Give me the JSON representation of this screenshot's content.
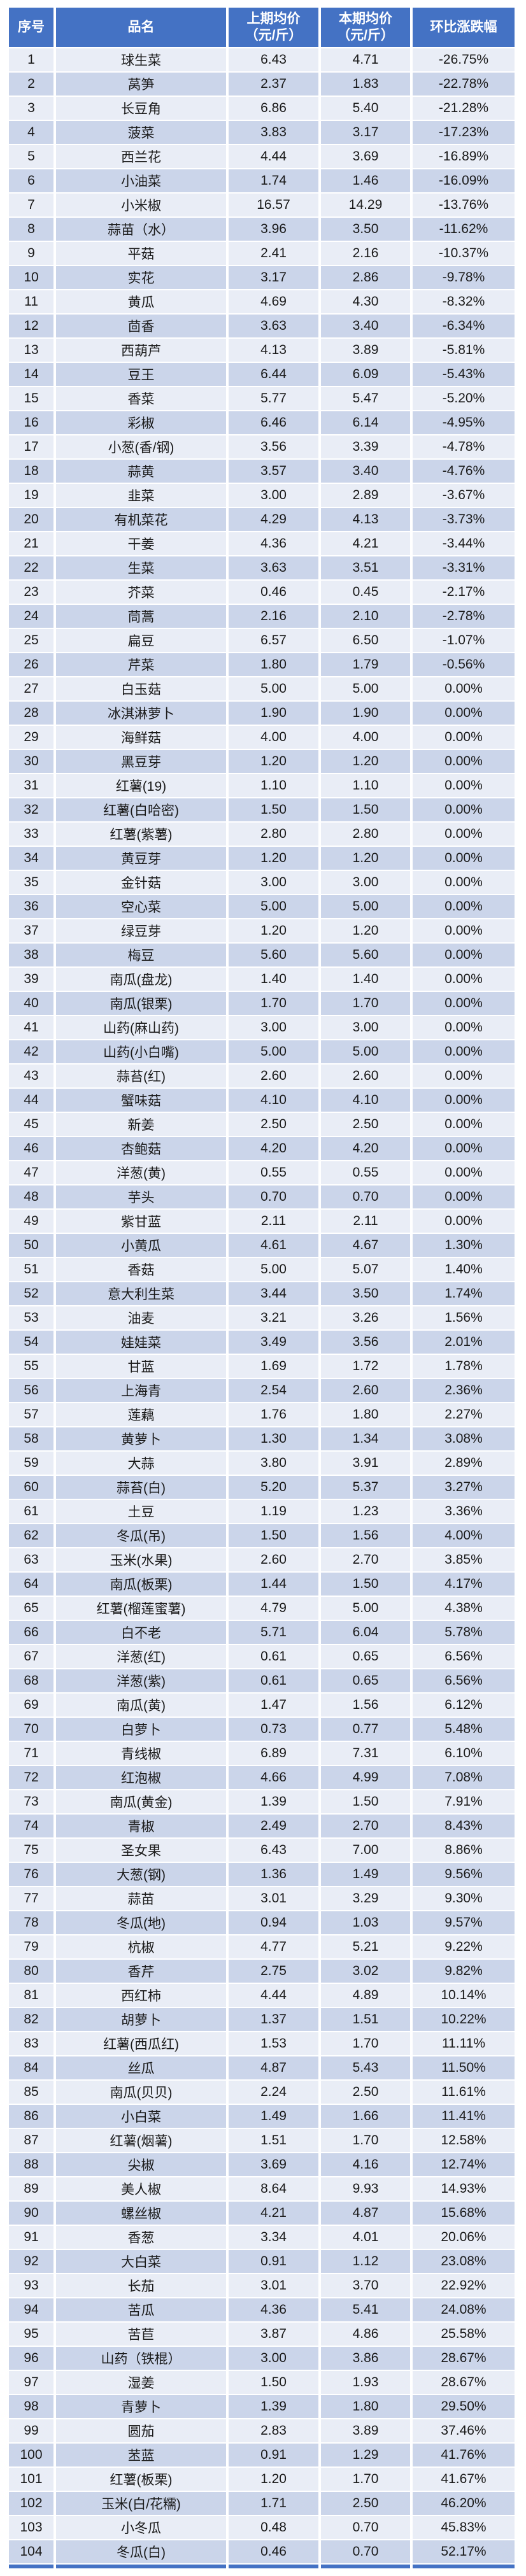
{
  "colors": {
    "header_bg": "#4472C4",
    "row_light": "#E9EDF6",
    "row_dark": "#CBD5EA",
    "header_text": "#FFFFFF",
    "body_text": "#1A1A1A"
  },
  "table": {
    "columns": [
      "序号",
      "品名",
      "上期均价\n（元/斤）",
      "本期均价\n（元/斤）",
      "环比涨跌幅"
    ],
    "rows": [
      [
        "1",
        "球生菜",
        "6.43",
        "4.71",
        "-26.75%"
      ],
      [
        "2",
        "莴笋",
        "2.37",
        "1.83",
        "-22.78%"
      ],
      [
        "3",
        "长豆角",
        "6.86",
        "5.40",
        "-21.28%"
      ],
      [
        "4",
        "菠菜",
        "3.83",
        "3.17",
        "-17.23%"
      ],
      [
        "5",
        "西兰花",
        "4.44",
        "3.69",
        "-16.89%"
      ],
      [
        "6",
        "小油菜",
        "1.74",
        "1.46",
        "-16.09%"
      ],
      [
        "7",
        "小米椒",
        "16.57",
        "14.29",
        "-13.76%"
      ],
      [
        "8",
        "蒜苗（水）",
        "3.96",
        "3.50",
        "-11.62%"
      ],
      [
        "9",
        "平菇",
        "2.41",
        "2.16",
        "-10.37%"
      ],
      [
        "10",
        "实花",
        "3.17",
        "2.86",
        "-9.78%"
      ],
      [
        "11",
        "黄瓜",
        "4.69",
        "4.30",
        "-8.32%"
      ],
      [
        "12",
        "茴香",
        "3.63",
        "3.40",
        "-6.34%"
      ],
      [
        "13",
        "西葫芦",
        "4.13",
        "3.89",
        "-5.81%"
      ],
      [
        "14",
        "豆王",
        "6.44",
        "6.09",
        "-5.43%"
      ],
      [
        "15",
        "香菜",
        "5.77",
        "5.47",
        "-5.20%"
      ],
      [
        "16",
        "彩椒",
        "6.46",
        "6.14",
        "-4.95%"
      ],
      [
        "17",
        "小葱(香/钢)",
        "3.56",
        "3.39",
        "-4.78%"
      ],
      [
        "18",
        "蒜黄",
        "3.57",
        "3.40",
        "-4.76%"
      ],
      [
        "19",
        "韭菜",
        "3.00",
        "2.89",
        "-3.67%"
      ],
      [
        "20",
        "有机菜花",
        "4.29",
        "4.13",
        "-3.73%"
      ],
      [
        "21",
        "干姜",
        "4.36",
        "4.21",
        "-3.44%"
      ],
      [
        "22",
        "生菜",
        "3.63",
        "3.51",
        "-3.31%"
      ],
      [
        "23",
        "芥菜",
        "0.46",
        "0.45",
        "-2.17%"
      ],
      [
        "24",
        "茼蒿",
        "2.16",
        "2.10",
        "-2.78%"
      ],
      [
        "25",
        "扁豆",
        "6.57",
        "6.50",
        "-1.07%"
      ],
      [
        "26",
        "芹菜",
        "1.80",
        "1.79",
        "-0.56%"
      ],
      [
        "27",
        "白玉菇",
        "5.00",
        "5.00",
        "0.00%"
      ],
      [
        "28",
        "冰淇淋萝卜",
        "1.90",
        "1.90",
        "0.00%"
      ],
      [
        "29",
        "海鲜菇",
        "4.00",
        "4.00",
        "0.00%"
      ],
      [
        "30",
        "黑豆芽",
        "1.20",
        "1.20",
        "0.00%"
      ],
      [
        "31",
        "红薯(19)",
        "1.10",
        "1.10",
        "0.00%"
      ],
      [
        "32",
        "红薯(白哈密)",
        "1.50",
        "1.50",
        "0.00%"
      ],
      [
        "33",
        "红薯(紫薯)",
        "2.80",
        "2.80",
        "0.00%"
      ],
      [
        "34",
        "黄豆芽",
        "1.20",
        "1.20",
        "0.00%"
      ],
      [
        "35",
        "金针菇",
        "3.00",
        "3.00",
        "0.00%"
      ],
      [
        "36",
        "空心菜",
        "5.00",
        "5.00",
        "0.00%"
      ],
      [
        "37",
        "绿豆芽",
        "1.20",
        "1.20",
        "0.00%"
      ],
      [
        "38",
        "梅豆",
        "5.60",
        "5.60",
        "0.00%"
      ],
      [
        "39",
        "南瓜(盘龙)",
        "1.40",
        "1.40",
        "0.00%"
      ],
      [
        "40",
        "南瓜(银栗)",
        "1.70",
        "1.70",
        "0.00%"
      ],
      [
        "41",
        "山药(麻山药)",
        "3.00",
        "3.00",
        "0.00%"
      ],
      [
        "42",
        "山药(小白嘴)",
        "5.00",
        "5.00",
        "0.00%"
      ],
      [
        "43",
        "蒜苔(红)",
        "2.60",
        "2.60",
        "0.00%"
      ],
      [
        "44",
        "蟹味菇",
        "4.10",
        "4.10",
        "0.00%"
      ],
      [
        "45",
        "新姜",
        "2.50",
        "2.50",
        "0.00%"
      ],
      [
        "46",
        "杏鲍菇",
        "4.20",
        "4.20",
        "0.00%"
      ],
      [
        "47",
        "洋葱(黄)",
        "0.55",
        "0.55",
        "0.00%"
      ],
      [
        "48",
        "芋头",
        "0.70",
        "0.70",
        "0.00%"
      ],
      [
        "49",
        "紫甘蓝",
        "2.11",
        "2.11",
        "0.00%"
      ],
      [
        "50",
        "小黄瓜",
        "4.61",
        "4.67",
        "1.30%"
      ],
      [
        "51",
        "香菇",
        "5.00",
        "5.07",
        "1.40%"
      ],
      [
        "52",
        "意大利生菜",
        "3.44",
        "3.50",
        "1.74%"
      ],
      [
        "53",
        "油麦",
        "3.21",
        "3.26",
        "1.56%"
      ],
      [
        "54",
        "娃娃菜",
        "3.49",
        "3.56",
        "2.01%"
      ],
      [
        "55",
        "甘蓝",
        "1.69",
        "1.72",
        "1.78%"
      ],
      [
        "56",
        "上海青",
        "2.54",
        "2.60",
        "2.36%"
      ],
      [
        "57",
        "莲藕",
        "1.76",
        "1.80",
        "2.27%"
      ],
      [
        "58",
        "黄萝卜",
        "1.30",
        "1.34",
        "3.08%"
      ],
      [
        "59",
        "大蒜",
        "3.80",
        "3.91",
        "2.89%"
      ],
      [
        "60",
        "蒜苔(白)",
        "5.20",
        "5.37",
        "3.27%"
      ],
      [
        "61",
        "土豆",
        "1.19",
        "1.23",
        "3.36%"
      ],
      [
        "62",
        "冬瓜(吊)",
        "1.50",
        "1.56",
        "4.00%"
      ],
      [
        "63",
        "玉米(水果)",
        "2.60",
        "2.70",
        "3.85%"
      ],
      [
        "64",
        "南瓜(板栗)",
        "1.44",
        "1.50",
        "4.17%"
      ],
      [
        "65",
        "红薯(榴莲蜜薯)",
        "4.79",
        "5.00",
        "4.38%"
      ],
      [
        "66",
        "白不老",
        "5.71",
        "6.04",
        "5.78%"
      ],
      [
        "67",
        "洋葱(红)",
        "0.61",
        "0.65",
        "6.56%"
      ],
      [
        "68",
        "洋葱(紫)",
        "0.61",
        "0.65",
        "6.56%"
      ],
      [
        "69",
        "南瓜(黄)",
        "1.47",
        "1.56",
        "6.12%"
      ],
      [
        "70",
        "白萝卜",
        "0.73",
        "0.77",
        "5.48%"
      ],
      [
        "71",
        "青线椒",
        "6.89",
        "7.31",
        "6.10%"
      ],
      [
        "72",
        "红泡椒",
        "4.66",
        "4.99",
        "7.08%"
      ],
      [
        "73",
        "南瓜(黄金)",
        "1.39",
        "1.50",
        "7.91%"
      ],
      [
        "74",
        "青椒",
        "2.49",
        "2.70",
        "8.43%"
      ],
      [
        "75",
        "圣女果",
        "6.43",
        "7.00",
        "8.86%"
      ],
      [
        "76",
        "大葱(钢)",
        "1.36",
        "1.49",
        "9.56%"
      ],
      [
        "77",
        "蒜苗",
        "3.01",
        "3.29",
        "9.30%"
      ],
      [
        "78",
        "冬瓜(地)",
        "0.94",
        "1.03",
        "9.57%"
      ],
      [
        "79",
        "杭椒",
        "4.77",
        "5.21",
        "9.22%"
      ],
      [
        "80",
        "香芹",
        "2.75",
        "3.02",
        "9.82%"
      ],
      [
        "81",
        "西红柿",
        "4.44",
        "4.89",
        "10.14%"
      ],
      [
        "82",
        "胡萝卜",
        "1.37",
        "1.51",
        "10.22%"
      ],
      [
        "83",
        "红薯(西瓜红)",
        "1.53",
        "1.70",
        "11.11%"
      ],
      [
        "84",
        "丝瓜",
        "4.87",
        "5.43",
        "11.50%"
      ],
      [
        "85",
        "南瓜(贝贝)",
        "2.24",
        "2.50",
        "11.61%"
      ],
      [
        "86",
        "小白菜",
        "1.49",
        "1.66",
        "11.41%"
      ],
      [
        "87",
        "红薯(烟薯)",
        "1.51",
        "1.70",
        "12.58%"
      ],
      [
        "88",
        "尖椒",
        "3.69",
        "4.16",
        "12.74%"
      ],
      [
        "89",
        "美人椒",
        "8.64",
        "9.93",
        "14.93%"
      ],
      [
        "90",
        "螺丝椒",
        "4.21",
        "4.87",
        "15.68%"
      ],
      [
        "91",
        "香葱",
        "3.34",
        "4.01",
        "20.06%"
      ],
      [
        "92",
        "大白菜",
        "0.91",
        "1.12",
        "23.08%"
      ],
      [
        "93",
        "长茄",
        "3.01",
        "3.70",
        "22.92%"
      ],
      [
        "94",
        "苦瓜",
        "4.36",
        "5.41",
        "24.08%"
      ],
      [
        "95",
        "苦苣",
        "3.87",
        "4.86",
        "25.58%"
      ],
      [
        "96",
        "山药（铁棍）",
        "3.00",
        "3.86",
        "28.67%"
      ],
      [
        "97",
        "湿姜",
        "1.50",
        "1.93",
        "28.67%"
      ],
      [
        "98",
        "青萝卜",
        "1.39",
        "1.80",
        "29.50%"
      ],
      [
        "99",
        "圆茄",
        "2.83",
        "3.89",
        "37.46%"
      ],
      [
        "100",
        "苤蓝",
        "0.91",
        "1.29",
        "41.76%"
      ],
      [
        "101",
        "红薯(板栗)",
        "1.20",
        "1.70",
        "41.67%"
      ],
      [
        "102",
        "玉米(白/花糯)",
        "1.71",
        "2.50",
        "46.20%"
      ],
      [
        "103",
        "小冬瓜",
        "0.48",
        "0.70",
        "45.83%"
      ],
      [
        "104",
        "冬瓜(白)",
        "0.46",
        "0.70",
        "52.17%"
      ]
    ]
  }
}
